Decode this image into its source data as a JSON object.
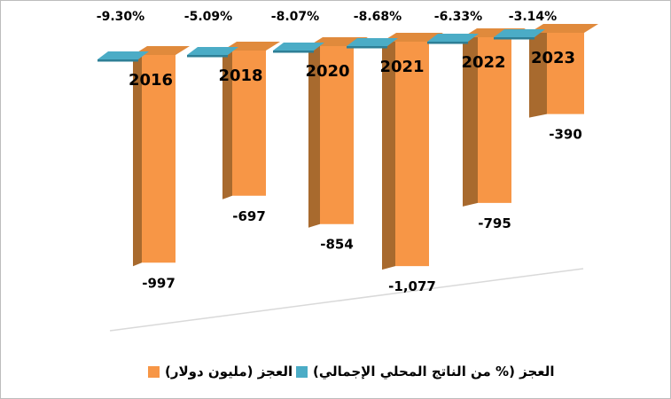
{
  "chart_data": {
    "type": "bar",
    "subtype": "3d-column-negative",
    "title": "",
    "xlabel": "",
    "ylabel": "",
    "axis_visible": false,
    "grid": false,
    "legend_position": "bottom",
    "categories": [
      "2016",
      "2018",
      "2020",
      "2021",
      "2022",
      "2023"
    ],
    "series": [
      {
        "name": "العجز (% من الناتج المحلي الإجمالي)",
        "color": "#4BACC6",
        "values": [
          -9.3,
          -5.09,
          -8.07,
          -8.68,
          -6.33,
          -3.14
        ],
        "data_labels": [
          "-9.30%",
          "-5.09%",
          "-8.07%",
          "-8.68%",
          "-6.33%",
          "-3.14%"
        ]
      },
      {
        "name": "العجز (مليون دولار)",
        "color": "#F79646",
        "values": [
          -997,
          -697,
          -854,
          -1077,
          -795,
          -390
        ],
        "data_labels": [
          "-997",
          "-697",
          "-854",
          "-1,077",
          "-795",
          "-390"
        ]
      }
    ],
    "colors": {
      "bar_front": "#F79646",
      "bar_side": "#A86A2E",
      "bar_top": "#E08A3C",
      "flap_top": "#4BACC6",
      "flap_edge": "#2E7F96",
      "floor_line": "#D9D9D9",
      "label_text": "#000000"
    }
  },
  "legend": {
    "items": [
      {
        "label": "العجز (مليون دولار)",
        "color": "#F79646"
      },
      {
        "label": "العجز (% من الناتج المحلي الإجمالي)",
        "color": "#4BACC6"
      }
    ]
  }
}
